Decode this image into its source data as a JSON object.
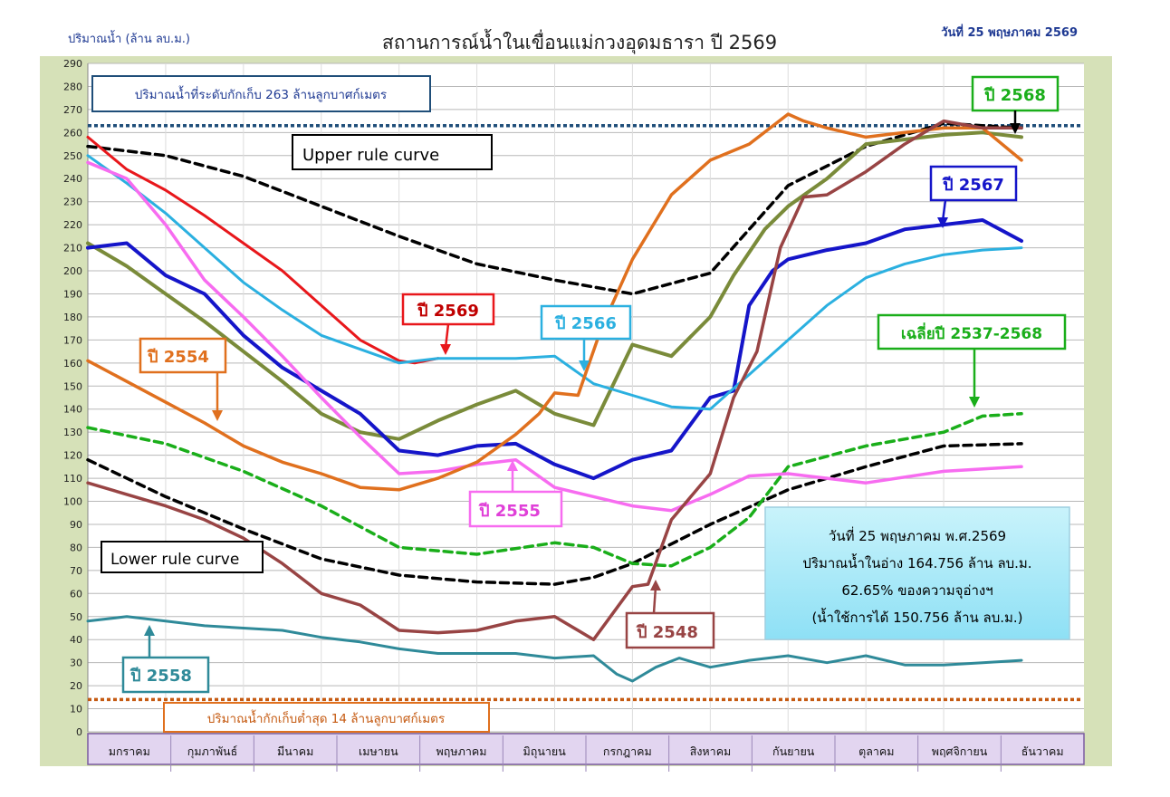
{
  "header": {
    "title": "สถานการณ์น้ำในเขื่อนแม่กวงอุดมธารา  ปี  2569",
    "ylabel": "ปริมาณน้ำ (ล้าน ลบ.ม.)",
    "date": "วันที่ 25 พฤษภาคม 2569"
  },
  "chart_data": {
    "type": "line",
    "title": "สถานการณ์น้ำในเขื่อนแม่กวงอุดมธารา  ปี  2569",
    "ylabel": "ปริมาณน้ำ (ล้าน ลบ.ม.)",
    "xlabel": "",
    "ylim": [
      0,
      290
    ],
    "yticks": [
      0,
      10,
      20,
      30,
      40,
      50,
      60,
      70,
      80,
      90,
      100,
      110,
      120,
      130,
      140,
      150,
      160,
      170,
      180,
      190,
      200,
      210,
      220,
      230,
      240,
      250,
      260,
      270,
      280,
      290
    ],
    "grid": true,
    "categories": [
      "มกราคม",
      "กุมภาพันธ์",
      "มีนาคม",
      "เมษายน",
      "พฤษภาคม",
      "มิถุนายน",
      "กรกฎาคม",
      "สิงหาคม",
      "กันยายน",
      "ตุลาคม",
      "พฤศจิกายน",
      "ธันวาคม"
    ],
    "x_unit": "month index (0 = 1 Jan, 12 = 31 Dec)",
    "reference_lines": [
      {
        "label": "ปริมาณน้ำที่ระดับกักเก็บ 263 ล้านลูกบาศก์เมตร",
        "value": 263,
        "color": "#1f4e79"
      },
      {
        "label": "ปริมาณน้ำกักเก็บต่ำสุด 14 ล้านลูกบาศก์เมตร",
        "value": 14,
        "color": "#c55a11"
      }
    ],
    "series": [
      {
        "name": "Upper rule curve",
        "color": "#000000",
        "dash": true,
        "width": 3.5,
        "x": [
          0,
          1,
          2,
          3,
          4,
          5,
          6,
          7,
          8,
          9,
          10,
          11,
          12
        ],
        "y": [
          254,
          250,
          241,
          228,
          215,
          203,
          196,
          190,
          199,
          237,
          254,
          264,
          262
        ]
      },
      {
        "name": "Lower rule curve",
        "color": "#000000",
        "dash": true,
        "width": 3.5,
        "x": [
          0,
          1,
          2,
          3,
          4,
          5,
          6,
          6.5,
          7,
          8,
          9,
          10,
          11,
          12
        ],
        "y": [
          118,
          102,
          88,
          75,
          68,
          65,
          64,
          67,
          73,
          90,
          105,
          115,
          124,
          125
        ]
      },
      {
        "name": "เฉลี่ยปี 2537-2568",
        "color": "#1aae1a",
        "dash": true,
        "width": 3.5,
        "x": [
          0,
          1,
          2,
          3,
          4,
          5,
          6,
          6.5,
          7,
          7.5,
          8,
          8.5,
          9,
          10,
          11,
          11.5,
          12
        ],
        "y": [
          132,
          125,
          113,
          98,
          80,
          77,
          82,
          80,
          73,
          72,
          80,
          93,
          115,
          124,
          130,
          137,
          138
        ]
      },
      {
        "name": "ปี 2569",
        "color": "#e8171b",
        "width": 3,
        "x": [
          0,
          0.5,
          1,
          1.5,
          2,
          2.5,
          3,
          3.5,
          4,
          4.2,
          4.5
        ],
        "y": [
          258,
          244,
          235,
          224,
          212,
          200,
          185,
          170,
          161,
          160,
          162
        ]
      },
      {
        "name": "ปี 2568",
        "color": "#7a8b3a",
        "width": 4,
        "x": [
          0,
          0.5,
          1,
          1.5,
          2,
          2.5,
          3,
          3.5,
          4,
          4.5,
          5,
          5.5,
          6,
          6.5,
          7,
          7.5,
          8,
          8.3,
          8.7,
          9,
          9.5,
          10,
          10.5,
          11,
          11.5,
          12
        ],
        "y": [
          212,
          202,
          190,
          178,
          165,
          152,
          138,
          130,
          127,
          135,
          142,
          148,
          138,
          133,
          168,
          163,
          180,
          198,
          218,
          228,
          240,
          255,
          257,
          259,
          260,
          258
        ]
      },
      {
        "name": "ปี 2567",
        "color": "#1515c9",
        "width": 4,
        "x": [
          0,
          0.5,
          1,
          1.5,
          2,
          2.5,
          3,
          3.5,
          4,
          4.5,
          5,
          5.5,
          6,
          6.5,
          7,
          7.5,
          8,
          8.3,
          8.5,
          8.8,
          9,
          9.5,
          10,
          10.5,
          11,
          11.5,
          12
        ],
        "y": [
          210,
          212,
          198,
          190,
          172,
          158,
          148,
          138,
          122,
          120,
          124,
          125,
          116,
          110,
          118,
          122,
          145,
          148,
          185,
          200,
          205,
          209,
          212,
          218,
          220,
          222,
          213
        ]
      },
      {
        "name": "ปี 2566",
        "color": "#2bb0e0",
        "width": 3,
        "x": [
          0,
          0.5,
          1,
          1.5,
          2,
          2.5,
          3,
          3.5,
          4,
          4.5,
          5,
          5.5,
          6,
          6.5,
          7,
          7.5,
          8,
          8.5,
          9,
          9.5,
          10,
          10.5,
          11,
          11.5,
          12
        ],
        "y": [
          250,
          238,
          225,
          210,
          195,
          183,
          172,
          166,
          160,
          162,
          162,
          162,
          163,
          151,
          146,
          141,
          140,
          155,
          170,
          185,
          197,
          203,
          207,
          209,
          210
        ]
      },
      {
        "name": "ปี 2555",
        "color": "#f76cf0",
        "width": 3.5,
        "x": [
          0,
          0.5,
          1,
          1.5,
          2,
          2.5,
          3,
          3.5,
          4,
          4.5,
          5,
          5.5,
          6,
          6.5,
          7,
          7.5,
          8,
          8.5,
          9,
          9.5,
          10,
          11,
          12
        ],
        "y": [
          247,
          240,
          220,
          196,
          180,
          163,
          145,
          128,
          112,
          113,
          116,
          118,
          106,
          102,
          98,
          96,
          103,
          111,
          112,
          110,
          108,
          113,
          115
        ]
      },
      {
        "name": "ปี 2554",
        "color": "#e0701e",
        "width": 3.5,
        "x": [
          0,
          0.5,
          1,
          1.5,
          2,
          2.5,
          3,
          3.5,
          4,
          4.5,
          5,
          5.5,
          5.8,
          6,
          6.3,
          6.6,
          7,
          7.5,
          8,
          8.5,
          9,
          9.2,
          9.5,
          10,
          10.5,
          11,
          11.5,
          12
        ],
        "y": [
          161,
          152,
          143,
          134,
          124,
          117,
          112,
          106,
          105,
          110,
          117,
          129,
          138,
          147,
          146,
          175,
          205,
          233,
          248,
          255,
          268,
          265,
          262,
          258,
          260,
          262,
          262,
          248
        ]
      },
      {
        "name": "ปี 2548",
        "color": "#984444",
        "width": 3.5,
        "x": [
          0,
          0.5,
          1,
          1.5,
          2,
          2.5,
          3,
          3.5,
          4,
          4.5,
          5,
          5.5,
          6,
          6.5,
          7,
          7.2,
          7.5,
          8,
          8.3,
          8.6,
          8.9,
          9.2,
          9.5,
          10,
          10.5,
          11,
          11.5,
          12
        ],
        "y": [
          108,
          103,
          98,
          92,
          84,
          73,
          60,
          55,
          44,
          43,
          44,
          48,
          50,
          40,
          63,
          64,
          92,
          112,
          145,
          165,
          210,
          232,
          233,
          243,
          255,
          265,
          262,
          262
        ]
      },
      {
        "name": "ปี 2558",
        "color": "#2f8a99",
        "width": 3,
        "x": [
          0,
          0.5,
          1,
          1.5,
          2,
          2.5,
          3,
          3.5,
          4,
          4.5,
          5,
          5.5,
          6,
          6.5,
          6.8,
          7,
          7.3,
          7.6,
          8,
          8.5,
          9,
          9.5,
          10,
          10.5,
          11,
          11.5,
          12
        ],
        "y": [
          48,
          50,
          48,
          46,
          45,
          44,
          41,
          39,
          36,
          34,
          34,
          34,
          32,
          33,
          25,
          22,
          28,
          32,
          28,
          31,
          33,
          30,
          33,
          29,
          29,
          30,
          31
        ]
      }
    ],
    "annotations": [
      {
        "text": "Upper rule curve"
      },
      {
        "text": "Lower rule curve"
      },
      {
        "text": "ปี 2569"
      },
      {
        "text": "ปี 2568"
      },
      {
        "text": "ปี 2567"
      },
      {
        "text": "ปี 2566"
      },
      {
        "text": "ปี 2555"
      },
      {
        "text": "ปี 2554"
      },
      {
        "text": "ปี 2548"
      },
      {
        "text": "ปี 2558"
      },
      {
        "text": "เฉลี่ยปี 2537-2568"
      }
    ]
  },
  "info_box": {
    "line1": "วันที่ 25 พฤษภาคม พ.ศ.2569",
    "line2": "ปริมาณน้ำในอ่าง 164.756 ล้าน ลบ.ม.",
    "line3": "62.65% ของความจุอ่างฯ",
    "line4": "(น้ำใช้การได้ 150.756 ล้าน ลบ.ม.)"
  }
}
